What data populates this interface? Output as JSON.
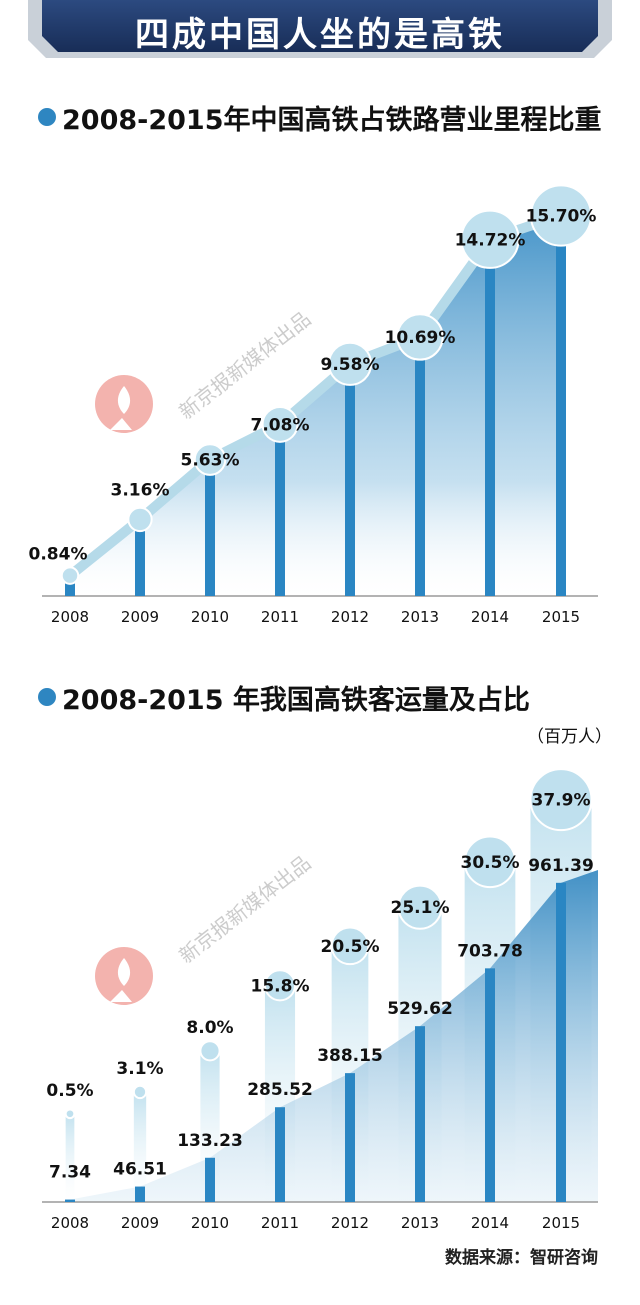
{
  "header": {
    "title": "四成中国人坐的是高铁"
  },
  "watermark": {
    "text": "新京报新媒体出品"
  },
  "source": "数据来源：智研咨询",
  "colors": {
    "banner": "#1f3a6b",
    "bar": "#2a86c3",
    "bubble": "#bfe0ee",
    "bullet": "#2e86c1"
  },
  "chart_data": [
    {
      "type": "bar",
      "title": "2008-2015年中国高铁占铁路营业里程比重",
      "categories": [
        "2008",
        "2009",
        "2010",
        "2011",
        "2012",
        "2013",
        "2014",
        "2015"
      ],
      "values": [
        0.84,
        3.16,
        5.63,
        7.08,
        9.58,
        10.69,
        14.72,
        15.7
      ],
      "data_labels": [
        "0.84%",
        "3.16%",
        "5.63%",
        "7.08%",
        "9.58%",
        "10.69%",
        "14.72%",
        "15.70%"
      ],
      "ylim": [
        0,
        17
      ],
      "grid": false,
      "legend": "none"
    },
    {
      "type": "bar",
      "title": "2008-2015 年我国高铁客运量及占比",
      "unit": "（百万人）",
      "categories": [
        "2008",
        "2009",
        "2010",
        "2011",
        "2012",
        "2013",
        "2014",
        "2015"
      ],
      "values": [
        7.34,
        46.51,
        133.23,
        285.52,
        388.15,
        529.62,
        703.78,
        961.39
      ],
      "value_labels": [
        "7.34",
        "46.51",
        "133.23",
        "285.52",
        "388.15",
        "529.62",
        "703.78",
        "961.39"
      ],
      "share": [
        0.5,
        3.1,
        8.0,
        15.8,
        20.5,
        25.1,
        30.5,
        37.9
      ],
      "share_labels": [
        "0.5%",
        "3.1%",
        "8.0%",
        "15.8%",
        "20.5%",
        "25.1%",
        "30.5%",
        "37.9%"
      ],
      "ylim": [
        0,
        1000
      ],
      "share_ylim": [
        0,
        40
      ],
      "grid": false,
      "legend": "none"
    }
  ]
}
